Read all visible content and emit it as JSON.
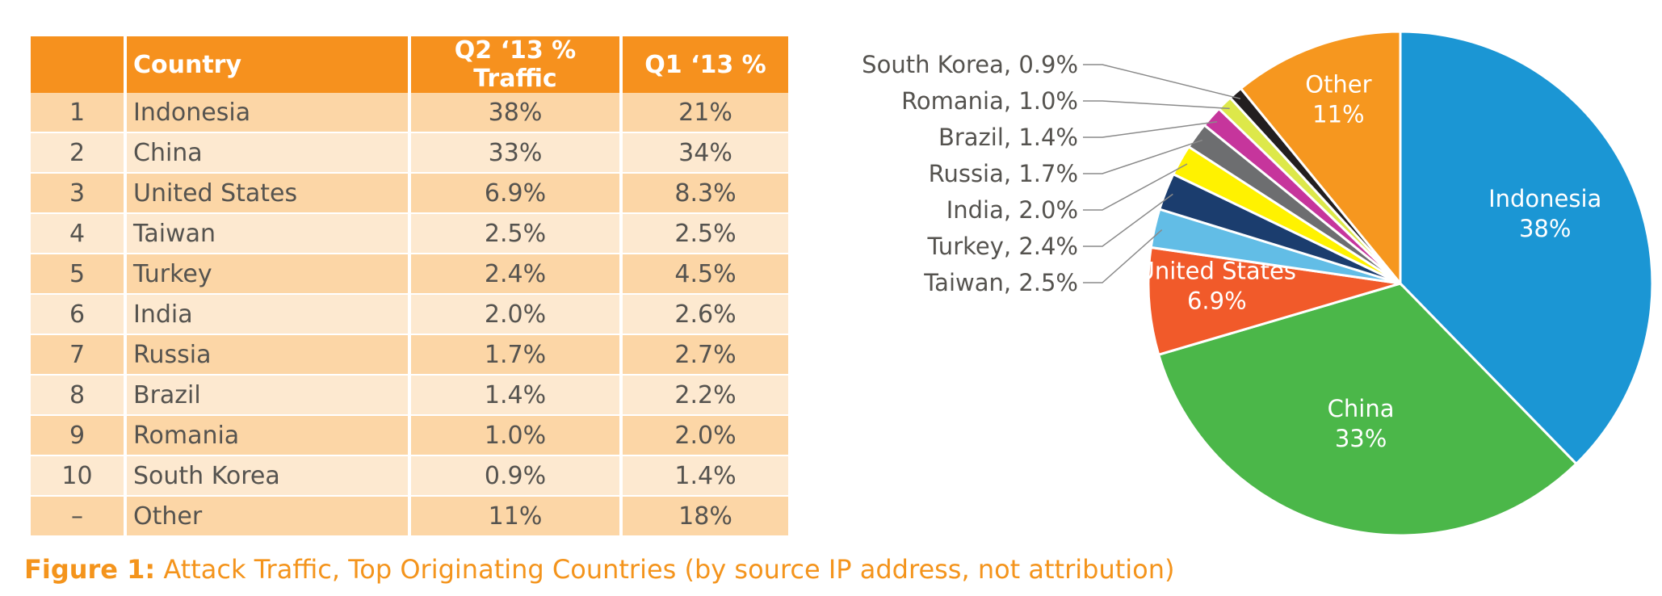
{
  "table": {
    "headers": [
      "",
      "Country",
      "Q2 ‘13 % Traffic",
      "Q1 ‘13 %"
    ],
    "rows": [
      {
        "rank": "1",
        "country": "Indonesia",
        "q2": "38%",
        "q1": "21%"
      },
      {
        "rank": "2",
        "country": "China",
        "q2": "33%",
        "q1": "34%"
      },
      {
        "rank": "3",
        "country": "United States",
        "q2": "6.9%",
        "q1": "8.3%"
      },
      {
        "rank": "4",
        "country": "Taiwan",
        "q2": "2.5%",
        "q1": "2.5%"
      },
      {
        "rank": "5",
        "country": "Turkey",
        "q2": "2.4%",
        "q1": "4.5%"
      },
      {
        "rank": "6",
        "country": "India",
        "q2": "2.0%",
        "q1": "2.6%"
      },
      {
        "rank": "7",
        "country": "Russia",
        "q2": "1.7%",
        "q1": "2.7%"
      },
      {
        "rank": "8",
        "country": "Brazil",
        "q2": "1.4%",
        "q1": "2.2%"
      },
      {
        "rank": "9",
        "country": "Romania",
        "q2": "1.0%",
        "q1": "2.0%"
      },
      {
        "rank": "10",
        "country": "South Korea",
        "q2": "0.9%",
        "q1": "1.4%"
      },
      {
        "rank": "–",
        "country": "Other",
        "q2": "11%",
        "q1": "18%"
      }
    ]
  },
  "caption": {
    "lead": "Figure 1:",
    "text": " Attack Traffic, Top Originating Countries (by source IP address, not attribution)"
  },
  "colors": {
    "header_bg": "#f6911e",
    "row_odd": "#fcd6a6",
    "row_even": "#fde9d0",
    "caption": "#f4941c"
  },
  "chart_data": {
    "type": "pie",
    "slices": [
      {
        "label": "Indonesia",
        "value": 38,
        "display": [
          "Indonesia",
          "38%"
        ],
        "color": "#1b96d4",
        "label_inside": true
      },
      {
        "label": "China",
        "value": 33,
        "display": [
          "China",
          "33%"
        ],
        "color": "#4bb749",
        "label_inside": true
      },
      {
        "label": "United States",
        "value": 6.9,
        "display": [
          "United States",
          "6.9%"
        ],
        "color": "#f15a2a",
        "label_inside": true
      },
      {
        "label": "Taiwan",
        "value": 2.5,
        "display": [
          "Taiwan, 2.5%"
        ],
        "color": "#62bde6",
        "label_inside": false
      },
      {
        "label": "Turkey",
        "value": 2.4,
        "display": [
          "Turkey, 2.4%"
        ],
        "color": "#1b3d6e",
        "label_inside": false
      },
      {
        "label": "India",
        "value": 2.0,
        "display": [
          "India, 2.0%"
        ],
        "color": "#fff200",
        "label_inside": false
      },
      {
        "label": "Russia",
        "value": 1.7,
        "display": [
          "Russia, 1.7%"
        ],
        "color": "#6d6e70",
        "label_inside": false
      },
      {
        "label": "Brazil",
        "value": 1.4,
        "display": [
          "Brazil, 1.4%"
        ],
        "color": "#c6359c",
        "label_inside": false
      },
      {
        "label": "Romania",
        "value": 1.0,
        "display": [
          "Romania, 1.0%"
        ],
        "color": "#dde84a",
        "label_inside": false
      },
      {
        "label": "South Korea",
        "value": 0.9,
        "display": [
          "South Korea, 0.9%"
        ],
        "color": "#231f20",
        "label_inside": false
      },
      {
        "label": "Other",
        "value": 11,
        "display": [
          "Other",
          "11%"
        ],
        "color": "#f6971f",
        "label_inside": true
      }
    ]
  }
}
